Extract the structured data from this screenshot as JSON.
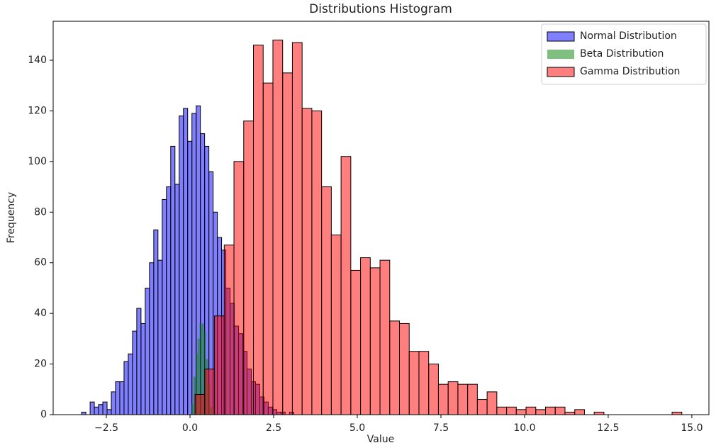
{
  "chart_data": {
    "type": "histogram",
    "title": "Distributions Histogram",
    "x_label": "Value",
    "y_label": "Frequency",
    "xlim": [
      -4.09,
      15.51
    ],
    "ylim": [
      0,
      155.4
    ],
    "xticks": [
      {
        "value": -2.5,
        "label": "−2.5"
      },
      {
        "value": 0,
        "label": "0.0"
      },
      {
        "value": 2.5,
        "label": "2.5"
      },
      {
        "value": 5,
        "label": "5.0"
      },
      {
        "value": 7.5,
        "label": "7.5"
      },
      {
        "value": 10,
        "label": "10.0"
      },
      {
        "value": 12.5,
        "label": "12.5"
      },
      {
        "value": 15,
        "label": "15.0"
      }
    ],
    "yticks": [
      0,
      20,
      40,
      60,
      80,
      100,
      120,
      140
    ],
    "legend": "upper right",
    "alpha": 0.5,
    "series": [
      {
        "name": "Normal Distribution",
        "color": "blue",
        "edgecolor": "black",
        "bins": [
          -3.24,
          -3.113,
          -2.986,
          -2.86,
          -2.733,
          -2.606,
          -2.479,
          -2.352,
          -2.226,
          -2.099,
          -1.972,
          -1.845,
          -1.718,
          -1.592,
          -1.465,
          -1.338,
          -1.211,
          -1.084,
          -0.958,
          -0.831,
          -0.704,
          -0.577,
          -0.45,
          -0.324,
          -0.197,
          -0.07,
          0.057,
          0.184,
          0.31,
          0.437,
          0.564,
          0.691,
          0.818,
          0.944,
          1.071,
          1.198,
          1.325,
          1.452,
          1.578,
          1.705,
          1.832,
          1.959,
          2.086,
          2.212,
          2.339,
          2.466,
          2.593,
          2.72,
          2.846,
          2.973,
          3.1
        ],
        "values": [
          1,
          0,
          5,
          3,
          4,
          5,
          2,
          9,
          13,
          13,
          21,
          24,
          33,
          42,
          36,
          50,
          60,
          73,
          61,
          85,
          90,
          106,
          91,
          118,
          121,
          108,
          119,
          122,
          111,
          106,
          96,
          80,
          70,
          65,
          50,
          44,
          35,
          32,
          25,
          18,
          13,
          12,
          7,
          5,
          3,
          2,
          1,
          1,
          0,
          1
        ]
      },
      {
        "name": "Beta Distribution",
        "color": "green",
        "bins": [
          0.04,
          0.102,
          0.164,
          0.226,
          0.288,
          0.35,
          0.412,
          0.474,
          0.536,
          0.598,
          0.66
        ],
        "values": [
          4,
          15,
          24,
          30,
          36,
          36,
          33,
          22,
          12,
          3
        ]
      },
      {
        "name": "Gamma Distribution",
        "color": "red",
        "edgecolor": "black",
        "bins": [
          0.15,
          0.441,
          0.732,
          1.023,
          1.314,
          1.605,
          1.896,
          2.187,
          2.478,
          2.769,
          3.06,
          3.351,
          3.642,
          3.933,
          4.224,
          4.515,
          4.806,
          5.097,
          5.388,
          5.679,
          5.97,
          6.261,
          6.552,
          6.843,
          7.134,
          7.425,
          7.716,
          8.007,
          8.298,
          8.589,
          8.88,
          9.171,
          9.462,
          9.753,
          10.044,
          10.335,
          10.626,
          10.917,
          11.208,
          11.499,
          11.79,
          12.081,
          12.372,
          12.663,
          12.954,
          13.245,
          13.536,
          13.827,
          14.118,
          14.409,
          14.7
        ],
        "values": [
          8,
          18,
          39,
          67,
          100,
          116,
          146,
          131,
          148,
          135,
          147,
          121,
          120,
          90,
          71,
          102,
          57,
          62,
          58,
          61,
          37,
          36,
          25,
          25,
          20,
          12,
          13,
          12,
          12,
          6,
          9,
          3,
          3,
          2,
          3,
          2,
          3,
          3,
          1,
          2,
          0,
          1,
          0,
          0,
          0,
          0,
          0,
          0,
          0,
          1
        ]
      }
    ]
  }
}
